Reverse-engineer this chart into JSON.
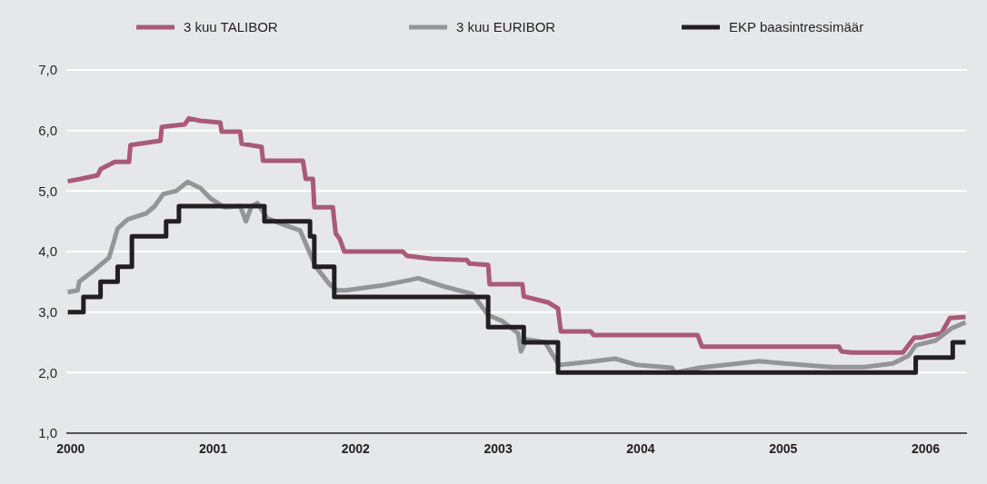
{
  "chart_data": {
    "type": "line",
    "xlim": [
      1999.97,
      2006.29
    ],
    "ylim": [
      1,
      7
    ],
    "xticks": [
      2000,
      2001,
      2002,
      2003,
      2004,
      2005,
      2006
    ],
    "yticks": [
      {
        "value": 1,
        "label": "1,0"
      },
      {
        "value": 2,
        "label": "2,0"
      },
      {
        "value": 3,
        "label": "3,0"
      },
      {
        "value": 4,
        "label": "4,0"
      },
      {
        "value": 5,
        "label": "5,0"
      },
      {
        "value": 6,
        "label": "6,0"
      },
      {
        "value": 7,
        "label": "7,0"
      }
    ],
    "grid": "y",
    "legend": "top",
    "series": [
      {
        "name": "3 kuu TALIBOR",
        "color": "#a85a78",
        "x": [
          1999.98,
          2000.07,
          2000.19,
          2000.21,
          2000.31,
          2000.41,
          2000.42,
          2000.63,
          2000.64,
          2000.8,
          2000.83,
          2000.91,
          2001.05,
          2001.06,
          2001.19,
          2001.2,
          2001.34,
          2001.35,
          2001.63,
          2001.65,
          2001.7,
          2001.71,
          2001.84,
          2001.86,
          2001.89,
          2001.92,
          2002.33,
          2002.36,
          2002.53,
          2002.78,
          2002.8,
          2002.93,
          2002.94,
          2003.17,
          2003.18,
          2003.35,
          2003.42,
          2003.44,
          2003.65,
          2003.67,
          2004.4,
          2004.43,
          2005.39,
          2005.41,
          2005.48,
          2005.84,
          2005.92,
          2005.97,
          2006.0,
          2006.11,
          2006.17,
          2006.28
        ],
        "values": [
          5.16,
          5.2,
          5.26,
          5.36,
          5.48,
          5.48,
          5.76,
          5.83,
          6.06,
          6.1,
          6.2,
          6.16,
          6.13,
          5.98,
          5.98,
          5.78,
          5.73,
          5.5,
          5.5,
          5.2,
          5.2,
          4.73,
          4.73,
          4.3,
          4.2,
          4.0,
          4.0,
          3.93,
          3.88,
          3.86,
          3.8,
          3.78,
          3.46,
          3.46,
          3.26,
          3.16,
          3.06,
          2.68,
          2.68,
          2.62,
          2.62,
          2.43,
          2.43,
          2.35,
          2.33,
          2.33,
          2.58,
          2.58,
          2.6,
          2.65,
          2.9,
          2.92
        ]
      },
      {
        "name": "3 kuu EURIBOR",
        "color": "#939598",
        "x": [
          1999.98,
          2000.05,
          2000.06,
          2000.17,
          2000.27,
          2000.33,
          2000.4,
          2000.53,
          2000.59,
          2000.65,
          2000.74,
          2000.82,
          2000.91,
          2000.98,
          2001.08,
          2001.19,
          2001.23,
          2001.27,
          2001.31,
          2001.38,
          2001.51,
          2001.61,
          2001.72,
          2001.82,
          2001.87,
          2001.93,
          2002.21,
          2002.38,
          2002.44,
          2002.61,
          2002.82,
          2002.93,
          2003.03,
          2003.14,
          2003.16,
          2003.2,
          2003.33,
          2003.42,
          2003.44,
          2003.65,
          2003.82,
          2003.97,
          2004.22,
          2004.24,
          2004.41,
          2004.83,
          2005.01,
          2005.34,
          2005.57,
          2005.77,
          2005.88,
          2005.93,
          2006.07,
          2006.18,
          2006.28
        ],
        "values": [
          3.33,
          3.36,
          3.5,
          3.7,
          3.9,
          4.38,
          4.53,
          4.63,
          4.75,
          4.95,
          5.0,
          5.15,
          5.05,
          4.88,
          4.73,
          4.75,
          4.5,
          4.75,
          4.8,
          4.55,
          4.43,
          4.35,
          3.75,
          3.45,
          3.36,
          3.36,
          3.45,
          3.53,
          3.56,
          3.43,
          3.3,
          2.95,
          2.85,
          2.65,
          2.35,
          2.55,
          2.5,
          2.15,
          2.13,
          2.18,
          2.23,
          2.13,
          2.08,
          2.0,
          2.08,
          2.19,
          2.15,
          2.09,
          2.09,
          2.15,
          2.28,
          2.45,
          2.53,
          2.73,
          2.83
        ]
      },
      {
        "name": "EKP baasintressimäär",
        "color": "#231f20",
        "type": "step",
        "x": [
          1999.98,
          2000.09,
          2000.21,
          2000.33,
          2000.43,
          2000.67,
          2000.76,
          2001.36,
          2001.68,
          2001.71,
          2001.85,
          2002.93,
          2003.18,
          2003.42,
          2005.93,
          2006.19,
          2006.28
        ],
        "values": [
          3.0,
          3.25,
          3.5,
          3.75,
          4.25,
          4.5,
          4.75,
          4.5,
          4.25,
          3.75,
          3.25,
          2.75,
          2.5,
          2.0,
          2.25,
          2.5,
          2.5
        ]
      }
    ]
  }
}
